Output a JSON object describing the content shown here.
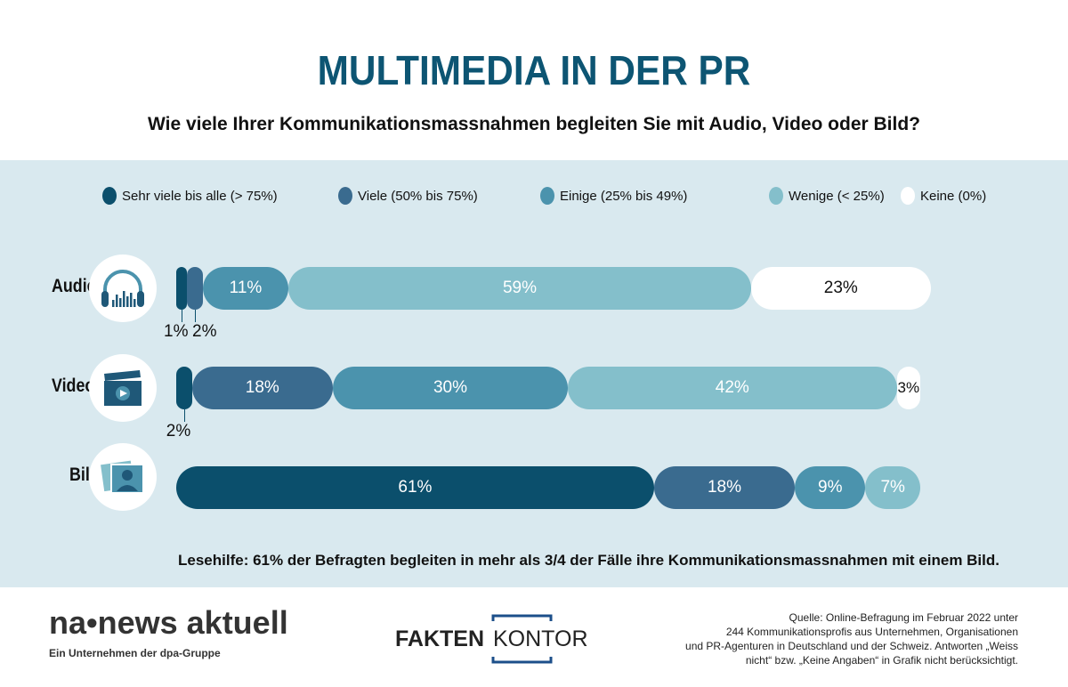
{
  "title": "MULTIMEDIA IN DER PR",
  "subtitle": "Wie viele Ihrer Kommunikationsmassnahmen begleiten Sie mit Audio, Video oder Bild?",
  "colors": {
    "title": "#0d5573",
    "background_band": "#d9e9ef"
  },
  "chart_data": {
    "type": "bar",
    "orientation": "horizontal-stacked",
    "title": "MULTIMEDIA IN DER PR",
    "categories": [
      "Audio",
      "Video",
      "Bild"
    ],
    "legend_position": "top",
    "series": [
      {
        "name": "Sehr viele bis alle (> 75%)",
        "color": "#0b4f6c",
        "values": [
          1,
          2,
          61
        ],
        "labels": [
          "1%",
          "2%",
          "61%"
        ]
      },
      {
        "name": "Viele (50% bis 75%)",
        "color": "#3a6b8f",
        "values": [
          2,
          18,
          18
        ],
        "labels": [
          "2%",
          "18%",
          "18%"
        ]
      },
      {
        "name": "Einige (25% bis 49%)",
        "color": "#4b93ad",
        "values": [
          11,
          30,
          9
        ],
        "labels": [
          "11%",
          "30%",
          "9%"
        ]
      },
      {
        "name": "Wenige (< 25%)",
        "color": "#84bfcb",
        "values": [
          59,
          42,
          7
        ],
        "labels": [
          "59%",
          "42%",
          "7%"
        ]
      },
      {
        "name": "Keine (0%)",
        "color": "#ffffff",
        "values": [
          23,
          3,
          0
        ],
        "labels": [
          "23%",
          "3%",
          ""
        ]
      }
    ],
    "icons": [
      "headphones-icon",
      "clapperboard-icon",
      "photo-icon"
    ]
  },
  "note": "Lesehilfe: 61% der Befragten begleiten in mehr als 3/4 der Fälle ihre Kommunikationsmassnahmen mit einem Bild.",
  "footer": {
    "logo_na": "na•news aktuell",
    "logo_na_sub": "Ein Unternehmen der dpa-Gruppe",
    "logo_fk": "FAKTENKONTOR",
    "source": [
      "Quelle: Online-Befragung im Februar 2022 unter",
      "244 Kommunikationsprofis aus Unternehmen, Organisationen",
      "und PR-Agenturen in Deutschland und der Schweiz. Antworten „Weiss",
      "nicht“ bzw. „Keine Angaben“ in Grafik nicht berücksichtigt."
    ]
  }
}
